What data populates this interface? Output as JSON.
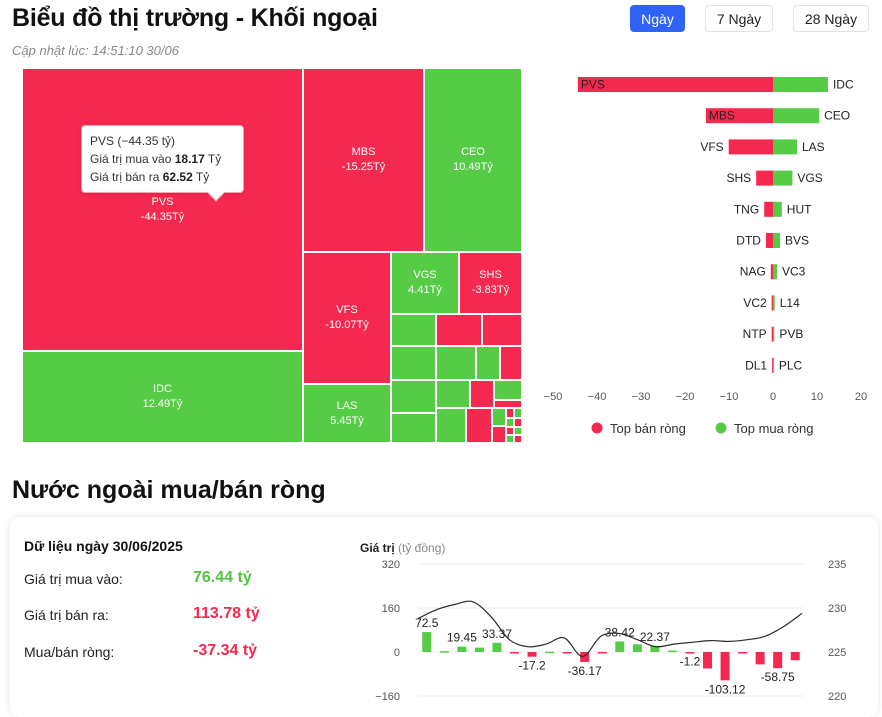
{
  "header": {
    "title": "Biểu đồ thị trường - Khối ngoại",
    "updated": "Cập nhật lúc: 14:51:10 30/06",
    "ranges": [
      "Ngày",
      "7 Ngày",
      "28 Ngày"
    ],
    "active_range": "Ngày"
  },
  "colors": {
    "sell": "#f5294f",
    "buy": "#56cb46",
    "accent": "#2f63f5"
  },
  "tooltip": {
    "title": "PVS (−44.35 tỷ)",
    "buy_label": "Giá trị mua vào",
    "buy_value": "18.17",
    "buy_unit": "Tỷ",
    "sell_label": "Giá trị bán ra",
    "sell_value": "62.52",
    "sell_unit": "Tỷ"
  },
  "section2": {
    "title": "Nước ngoài mua/bán ròng",
    "date_header": "Dữ liệu ngày 30/06/2025",
    "buy_label": "Giá trị mua vào:",
    "buy_value": "76.44 tỷ",
    "sell_label": "Giá trị bán ra:",
    "sell_value": "113.78 tỷ",
    "net_label": "Mua/bán ròng:",
    "net_value": "-37.34 tỷ"
  },
  "chart_data": [
    {
      "type": "treemap",
      "items": [
        {
          "name": "PVS",
          "label": "-44.35Tỷ",
          "value": -44.35
        },
        {
          "name": "IDC",
          "label": "12.49Tỷ",
          "value": 12.49
        },
        {
          "name": "MBS",
          "label": "-15.25Tỷ",
          "value": -15.25
        },
        {
          "name": "CEO",
          "label": "10.49Tỷ",
          "value": 10.49
        },
        {
          "name": "VFS",
          "label": "-10.07Tỷ",
          "value": -10.07
        },
        {
          "name": "VGS",
          "label": "4.41Tỷ",
          "value": 4.41
        },
        {
          "name": "SHS",
          "label": "-3.83Tỷ",
          "value": -3.83
        },
        {
          "name": "LAS",
          "label": "5.45Tỷ",
          "value": 5.45
        }
      ]
    },
    {
      "type": "bar",
      "orientation": "horizontal",
      "sell_series_name": "Top bán ròng",
      "buy_series_name": "Top mua ròng",
      "xlim": [
        -50,
        20
      ],
      "xticks": [
        -50,
        -40,
        -30,
        -20,
        -10,
        0,
        10,
        20
      ],
      "sell": [
        {
          "name": "PVS",
          "value": -44.35
        },
        {
          "name": "MBS",
          "value": -15.25
        },
        {
          "name": "VFS",
          "value": -10.07
        },
        {
          "name": "SHS",
          "value": -3.83
        },
        {
          "name": "TNG",
          "value": -2.0
        },
        {
          "name": "DTD",
          "value": -1.6
        },
        {
          "name": "NAG",
          "value": -0.5
        },
        {
          "name": "VC2",
          "value": -0.3
        },
        {
          "name": "NTP",
          "value": -0.3
        },
        {
          "name": "DL1",
          "value": -0.2
        }
      ],
      "buy": [
        {
          "name": "IDC",
          "value": 12.49
        },
        {
          "name": "CEO",
          "value": 10.49
        },
        {
          "name": "LAS",
          "value": 5.45
        },
        {
          "name": "VGS",
          "value": 4.41
        },
        {
          "name": "HUT",
          "value": 2.0
        },
        {
          "name": "BVS",
          "value": 1.6
        },
        {
          "name": "VC3",
          "value": 0.9
        },
        {
          "name": "L14",
          "value": 0.4
        },
        {
          "name": "PVB",
          "value": 0.3
        },
        {
          "name": "PLC",
          "value": 0.2
        }
      ]
    },
    {
      "type": "bar+line",
      "y_left_label": "Giá trị",
      "y_left_unit": "(tỷ đồng)",
      "y_left_ticks": [
        320,
        160,
        0,
        -160
      ],
      "y_left_lim": [
        -160,
        320
      ],
      "y_right_ticks": [
        235,
        230,
        225,
        220
      ],
      "y_right_lim": [
        220,
        235
      ],
      "bars": [
        72.5,
        3.0,
        19.45,
        16.0,
        33.37,
        -4.0,
        -17.2,
        1.0,
        -1.0,
        -36.17,
        -2.0,
        38.42,
        28.0,
        22.37,
        5.0,
        -1.2,
        -60.0,
        -103.12,
        -2.0,
        -45.0,
        -58.75,
        -30.0
      ],
      "bar_labels": {
        "0": "72.5",
        "2": "19.45",
        "4": "33.37",
        "6": "-17.2",
        "9": "-36.17",
        "11": "38.42",
        "13": "22.37",
        "15": "-1.2",
        "17": "-103.12",
        "20": "-58.75"
      },
      "line": [
        228.8,
        229.8,
        230.4,
        230.7,
        229.0,
        226.4,
        225.6,
        225.9,
        226.6,
        224.5,
        226.8,
        227.1,
        226.4,
        225.6,
        225.9,
        226.1,
        226.3,
        226.2,
        226.4,
        226.8,
        227.9,
        229.4
      ]
    }
  ]
}
